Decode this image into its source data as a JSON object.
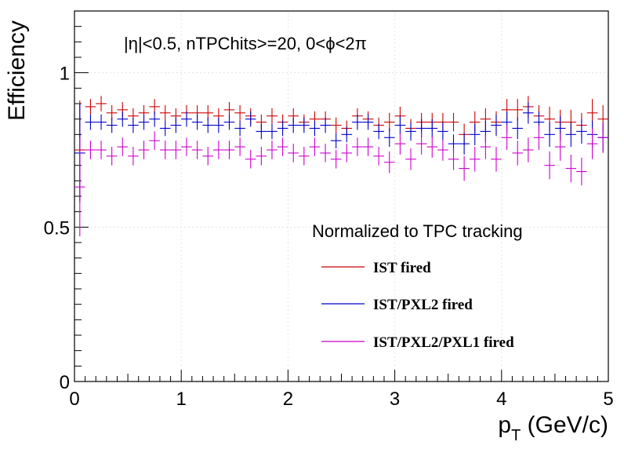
{
  "chart_data": {
    "type": "scatter",
    "title": "",
    "annotation": "|η|<0.5, nTPChits>=20, 0<ϕ<2π",
    "xlabel": "p",
    "xlabel_sub": "T",
    "xlabel_unit": " (GeV/c)",
    "ylabel": "Efficiency",
    "xlim": [
      0,
      5
    ],
    "ylim": [
      0,
      1.2
    ],
    "x_ticks": [
      "0",
      "1",
      "2",
      "3",
      "4",
      "5"
    ],
    "y_ticks": [
      "0",
      "0.5",
      "1"
    ],
    "grid": true,
    "legend": {
      "header": "Normalized to TPC tracking",
      "placement": "lower-right"
    },
    "x": [
      0.05,
      0.15,
      0.25,
      0.35,
      0.45,
      0.55,
      0.65,
      0.75,
      0.85,
      0.95,
      1.05,
      1.15,
      1.25,
      1.35,
      1.45,
      1.55,
      1.65,
      1.75,
      1.85,
      1.95,
      2.05,
      2.15,
      2.25,
      2.35,
      2.45,
      2.55,
      2.65,
      2.75,
      2.85,
      2.95,
      3.05,
      3.15,
      3.25,
      3.35,
      3.45,
      3.55,
      3.65,
      3.75,
      3.85,
      3.95,
      4.05,
      4.15,
      4.25,
      4.35,
      4.45,
      4.55,
      4.65,
      4.75,
      4.85,
      4.95
    ],
    "series": [
      {
        "name": "IST fired",
        "color": "#cc0000",
        "values": [
          0.75,
          0.89,
          0.9,
          0.87,
          0.88,
          0.86,
          0.87,
          0.89,
          0.87,
          0.86,
          0.87,
          0.87,
          0.87,
          0.86,
          0.88,
          0.87,
          0.86,
          0.84,
          0.86,
          0.84,
          0.86,
          0.84,
          0.85,
          0.85,
          0.83,
          0.82,
          0.86,
          0.85,
          0.83,
          0.84,
          0.86,
          0.82,
          0.84,
          0.84,
          0.84,
          0.84,
          0.8,
          0.84,
          0.85,
          0.84,
          0.88,
          0.88,
          0.89,
          0.86,
          0.85,
          0.84,
          0.84,
          0.83,
          0.87,
          0.85
        ],
        "err": [
          0.16,
          0.025,
          0.025,
          0.025,
          0.025,
          0.025,
          0.025,
          0.025,
          0.025,
          0.025,
          0.025,
          0.025,
          0.025,
          0.025,
          0.025,
          0.025,
          0.025,
          0.025,
          0.025,
          0.025,
          0.025,
          0.025,
          0.025,
          0.025,
          0.025,
          0.025,
          0.025,
          0.025,
          0.025,
          0.03,
          0.03,
          0.03,
          0.03,
          0.03,
          0.03,
          0.03,
          0.035,
          0.035,
          0.035,
          0.035,
          0.035,
          0.035,
          0.035,
          0.035,
          0.04,
          0.04,
          0.04,
          0.04,
          0.045,
          0.045
        ]
      },
      {
        "name": "IST/PXL2 fired",
        "color": "#0000cc",
        "values": [
          0.74,
          0.84,
          0.84,
          0.83,
          0.85,
          0.83,
          0.84,
          0.85,
          0.82,
          0.83,
          0.85,
          0.84,
          0.83,
          0.83,
          0.84,
          0.82,
          0.85,
          0.81,
          0.81,
          0.82,
          0.83,
          0.83,
          0.82,
          0.83,
          0.78,
          0.8,
          0.84,
          0.84,
          0.81,
          0.79,
          0.83,
          0.81,
          0.82,
          0.82,
          0.81,
          0.77,
          0.77,
          0.8,
          0.81,
          0.83,
          0.84,
          0.82,
          0.87,
          0.84,
          0.8,
          0.82,
          0.8,
          0.81,
          0.8,
          0.79
        ],
        "err": [
          0.16,
          0.025,
          0.025,
          0.025,
          0.025,
          0.025,
          0.025,
          0.025,
          0.025,
          0.025,
          0.025,
          0.025,
          0.025,
          0.025,
          0.025,
          0.025,
          0.025,
          0.025,
          0.025,
          0.025,
          0.025,
          0.025,
          0.025,
          0.025,
          0.025,
          0.025,
          0.025,
          0.025,
          0.025,
          0.03,
          0.03,
          0.03,
          0.03,
          0.03,
          0.03,
          0.03,
          0.035,
          0.035,
          0.035,
          0.035,
          0.035,
          0.035,
          0.035,
          0.035,
          0.04,
          0.04,
          0.04,
          0.04,
          0.045,
          0.045
        ]
      },
      {
        "name": "IST/PXL2/PXL1 fired",
        "color": "#cc00cc",
        "values": [
          0.63,
          0.75,
          0.75,
          0.73,
          0.76,
          0.73,
          0.75,
          0.78,
          0.75,
          0.75,
          0.76,
          0.75,
          0.73,
          0.75,
          0.75,
          0.76,
          0.72,
          0.73,
          0.75,
          0.76,
          0.74,
          0.73,
          0.76,
          0.74,
          0.72,
          0.74,
          0.76,
          0.76,
          0.73,
          0.71,
          0.77,
          0.72,
          0.77,
          0.76,
          0.75,
          0.72,
          0.69,
          0.72,
          0.76,
          0.72,
          0.79,
          0.74,
          0.75,
          0.79,
          0.7,
          0.76,
          0.69,
          0.68,
          0.77,
          0.79
        ],
        "err": [
          0.16,
          0.03,
          0.03,
          0.03,
          0.03,
          0.03,
          0.03,
          0.03,
          0.03,
          0.03,
          0.03,
          0.03,
          0.03,
          0.03,
          0.03,
          0.03,
          0.03,
          0.03,
          0.03,
          0.03,
          0.03,
          0.03,
          0.03,
          0.03,
          0.03,
          0.03,
          0.03,
          0.03,
          0.03,
          0.035,
          0.035,
          0.035,
          0.035,
          0.035,
          0.035,
          0.035,
          0.04,
          0.04,
          0.04,
          0.04,
          0.04,
          0.04,
          0.04,
          0.04,
          0.045,
          0.045,
          0.045,
          0.045,
          0.05,
          0.05
        ]
      }
    ]
  }
}
